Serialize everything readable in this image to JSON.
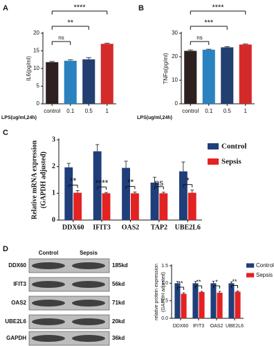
{
  "chart_data": [
    {
      "type": "bar",
      "panel": "A",
      "ylabel": "IL6(pg/ml)",
      "xlabel": "LPS(ug/ml,24h)",
      "categories": [
        "control",
        "0.1",
        "0.5",
        "1"
      ],
      "values": [
        11.8,
        12.2,
        12.6,
        17.0
      ],
      "errors": [
        0.2,
        0.3,
        0.5,
        0.2
      ],
      "colors": [
        "#2e2020",
        "#2b82c0",
        "#233e70",
        "#d42a2a"
      ],
      "ylim": [
        0,
        20
      ],
      "yticks": [
        0,
        5,
        10,
        15,
        20
      ],
      "significance": [
        null,
        "ns",
        "**",
        "****"
      ]
    },
    {
      "type": "bar",
      "panel": "B",
      "ylabel": "TNFα(pg/ml)",
      "xlabel": "LPS(ug/ml,24h)",
      "categories": [
        "control",
        "0.1",
        "0.5",
        "1"
      ],
      "values": [
        22.5,
        23.0,
        24.0,
        25.2
      ],
      "errors": [
        0.4,
        0.2,
        0.3,
        0.2
      ],
      "colors": [
        "#2e2020",
        "#2b82c0",
        "#233e70",
        "#d42a2a"
      ],
      "ylim": [
        0,
        30
      ],
      "yticks": [
        0,
        10,
        20,
        30
      ],
      "significance": [
        null,
        "ns",
        "***",
        "****"
      ]
    },
    {
      "type": "bar",
      "panel": "C",
      "ylabel": [
        "Relative mRNA expression",
        "(GAPDH adjusted)"
      ],
      "categories": [
        "DDX60",
        "IFIT3",
        "OAS2",
        "TAP2",
        "UBE2L6"
      ],
      "series": [
        {
          "name": "Control",
          "color": "#1f3e7a",
          "values": [
            1.97,
            2.57,
            1.95,
            1.4,
            1.82
          ],
          "errors": [
            0.15,
            0.25,
            0.25,
            0.2,
            0.35
          ]
        },
        {
          "name": "Sepsis",
          "color": "#e32222",
          "values": [
            1.02,
            1.0,
            1.0,
            1.0,
            1.02
          ],
          "errors": [
            0.08,
            0.03,
            0.05,
            0.04,
            0.1
          ]
        }
      ],
      "ylim": [
        0,
        3
      ],
      "yticks": [
        0,
        1,
        2,
        3
      ],
      "significance": [
        "**",
        "****",
        "**",
        "ns",
        "*"
      ]
    },
    {
      "type": "bar",
      "ylabel": [
        "relative protein expression",
        "(GAPDH adjusted)"
      ],
      "categories": [
        "DDX60",
        "IFIT3",
        "OAS2",
        "UBE2L6"
      ],
      "series": [
        {
          "name": "Control",
          "color": "#1f3e7a",
          "values": [
            1.0,
            1.0,
            1.0,
            1.0
          ],
          "errors": [
            0.05,
            0.05,
            0.06,
            0.04
          ]
        },
        {
          "name": "Sepsis",
          "color": "#e32222",
          "values": [
            0.7,
            0.75,
            0.73,
            0.76
          ],
          "errors": [
            0.03,
            0.02,
            0.04,
            0.02
          ]
        }
      ],
      "ylim": [
        0,
        1.5
      ],
      "yticks": [
        {
          "value": 0,
          "label": "0.0"
        },
        0.5,
        {
          "value": 1,
          "label": "1.0"
        },
        {
          "value": 1.5,
          "label": "1.5"
        }
      ],
      "significance": [
        "**",
        "**",
        "*",
        "**"
      ]
    }
  ],
  "blot": {
    "panel": "D",
    "columns": [
      "Control",
      "Sepsis"
    ],
    "rows": [
      {
        "label": "DDX60",
        "size": "185kd"
      },
      {
        "label": "IFIT3",
        "size": "56kd"
      },
      {
        "label": "OAS2",
        "size": "71kd"
      },
      {
        "label": "UBE2L6",
        "size": "20kd"
      },
      {
        "label": "GAPDH",
        "size": "36kd"
      }
    ]
  }
}
